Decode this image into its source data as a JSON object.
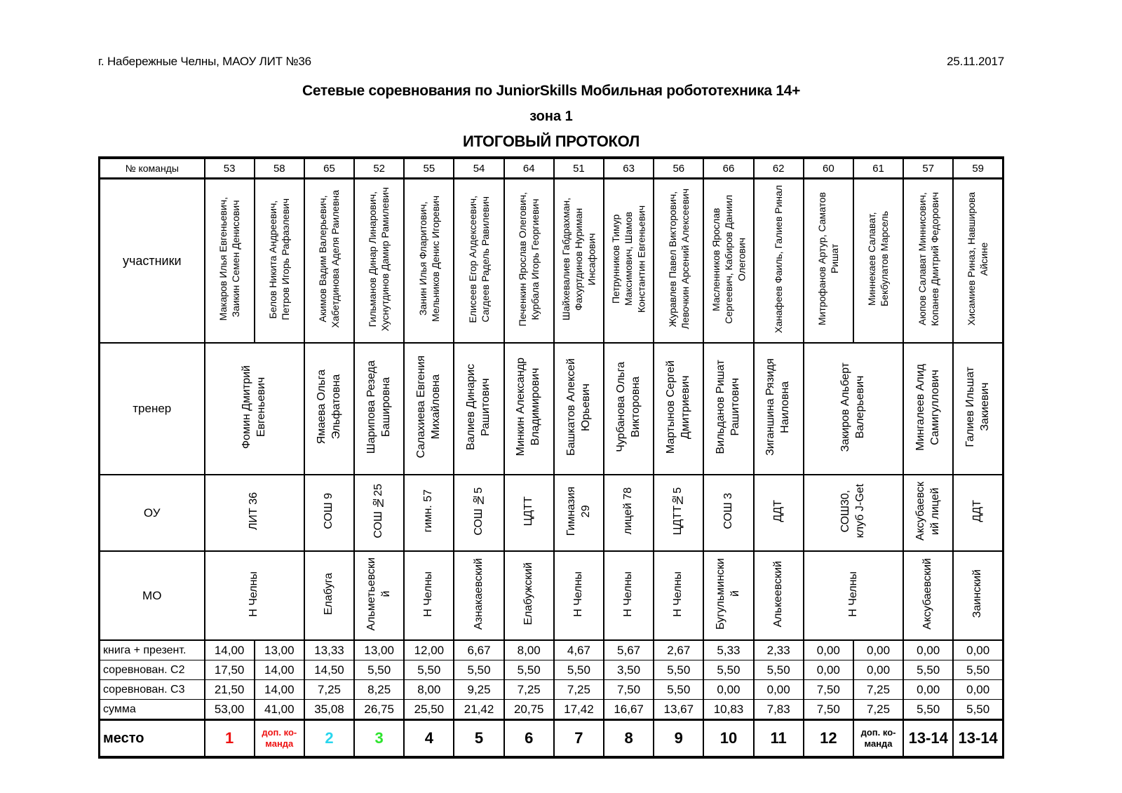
{
  "page": {
    "org": "г. Набережные Челны, МАОУ ЛИТ №36",
    "date": "25.11.2017",
    "title": "Сетевые соревнования по JuniorSkills Мобильная робототехника 14+",
    "zone": "зона 1",
    "protocol_title": "ИТОГОВЫЙ ПРОТОКОЛ"
  },
  "table": {
    "row_labels": {
      "team_no": "№ команды",
      "participants": "участники",
      "coach": "тренер",
      "ou": "ОУ",
      "mo": "МО",
      "book": "книга + презент.",
      "c2": "соревнован. С2",
      "c3": "соревнован. С3",
      "sum": "сумма",
      "place": "место"
    },
    "team_numbers": [
      "53",
      "58",
      "65",
      "52",
      "55",
      "54",
      "64",
      "51",
      "63",
      "56",
      "66",
      "62",
      "60",
      "61",
      "57",
      "59"
    ],
    "participants": [
      "Макаров Илья Евгеньевич,\nЗаикин Семен Денисович",
      "Белов Никита Андреевич,\nПетров Игорь Рафаэлевич",
      "Акимов Вадим Валерьевич,\nХабетдинова Аделя Раилевна",
      "Гильманов Динар Линарович,\nХуснутдинов Дамир Рамилевич",
      "Занин Илья Фларитович,\nМельников Денис Игоревич",
      "Елисеев Егор Алдексеевич,\nСагдеев Радель Равилевич",
      "Печенкин Ярослав Олегович,\nКурбала Игорь Георгиевич",
      "Шайхевалиев Габдрахман,\nФахуртдинов Нуриман\nИнсафович",
      "Петрунников Тимур\nМаксимович, Шамов\nКонстантин Евгеньевич",
      "Журавлев Павел Викторович,\nЛевочкин Арсений Алексеевич",
      "Масленников Ярослав\nСергеевич, Кабиров Даниил\nОлегович",
      "Ханафеев Фаиль, Галиев Ринал",
      "Митрофанов Артур, Саматов\nРишат",
      "Миннекаев Салават,\nБекбулатов Марсель",
      "Аюпов Салават Миннисович,\nКопанев Дмитрий Федорович",
      "Хисамиев Риназ, Навширова\nАйсине"
    ],
    "coaches": [
      "Фомин Дмитрий\nЕвгеньевич",
      "Ямаева Ольга\nЭльфатовна",
      "Шарипова Резеда\nБашировна",
      "Салахиева Евгения\nМихайловна",
      "Валиев Динарис\nРашитович",
      "Минкин Александр\nВладимирович",
      "Башкатов Алексей\nЮрьевич",
      "Чурбанова Ольга\nВикторовна",
      "Мартынов Сергей\nДмитриевич",
      "Вильданов Ришат\nРашитович",
      "Зиганшина Рязидя\nНаиловна",
      "Закиров Альберт\nВалерьевич",
      "Мингалеев Алид\nСамигуллович",
      "Галиев Ильшат\nЗакиевич"
    ],
    "ou": [
      "ЛИТ 36",
      "СОШ 9",
      "СОШ №25",
      "гимн. 57",
      "СОШ №5",
      "ЦДТТ",
      "Гимназия\n29",
      "лицей 78",
      "ЦДТТ№5",
      "СОШ 3",
      "ДДТ",
      "СОШ30,\nклуб J-Get",
      "Аксубаевск\nий лицей",
      "ДДТ"
    ],
    "mo": [
      "Н Челны",
      "Елабуга",
      "Альметьевски\nй",
      "Н Челны",
      "Азнакаевский",
      "Елабужский",
      "Н Челны",
      "Н Челны",
      "Н Челны",
      "Бугульмински\nй",
      "Алькеевский",
      "Н Челны",
      "Аксубаевский",
      "Заинский"
    ],
    "scores": {
      "book": [
        "14,00",
        "13,00",
        "13,33",
        "13,00",
        "12,00",
        "6,67",
        "8,00",
        "4,67",
        "5,67",
        "2,67",
        "5,33",
        "2,33",
        "0,00",
        "0,00",
        "0,00",
        "0,00"
      ],
      "c2": [
        "17,50",
        "14,00",
        "14,50",
        "5,50",
        "5,50",
        "5,50",
        "5,50",
        "5,50",
        "3,50",
        "5,50",
        "5,50",
        "5,50",
        "0,00",
        "0,00",
        "5,50",
        "5,50"
      ],
      "c3": [
        "21,50",
        "14,00",
        "7,25",
        "8,25",
        "8,00",
        "9,25",
        "7,25",
        "7,25",
        "7,50",
        "5,50",
        "0,00",
        "0,00",
        "7,50",
        "7,25",
        "0,00",
        "0,00"
      ],
      "sum": [
        "53,00",
        "41,00",
        "35,08",
        "26,75",
        "25,50",
        "21,42",
        "20,75",
        "17,42",
        "16,67",
        "13,67",
        "10,83",
        "7,83",
        "7,50",
        "7,25",
        "5,50",
        "5,50"
      ]
    },
    "places": [
      {
        "t": "1",
        "color": "#ee1111"
      },
      {
        "t": "доп. ко-\nманда",
        "color": "#ee1111",
        "small": true
      },
      {
        "t": "2",
        "color": "#29d6ee"
      },
      {
        "t": "3",
        "color": "#2ee42e"
      },
      {
        "t": "4"
      },
      {
        "t": "5"
      },
      {
        "t": "6"
      },
      {
        "t": "7"
      },
      {
        "t": "8"
      },
      {
        "t": "9"
      },
      {
        "t": "10"
      },
      {
        "t": "11"
      },
      {
        "t": "12"
      },
      {
        "t": "доп. ко-\nманда",
        "small": true
      },
      {
        "t": "13-14"
      },
      {
        "t": "13-14"
      }
    ]
  }
}
